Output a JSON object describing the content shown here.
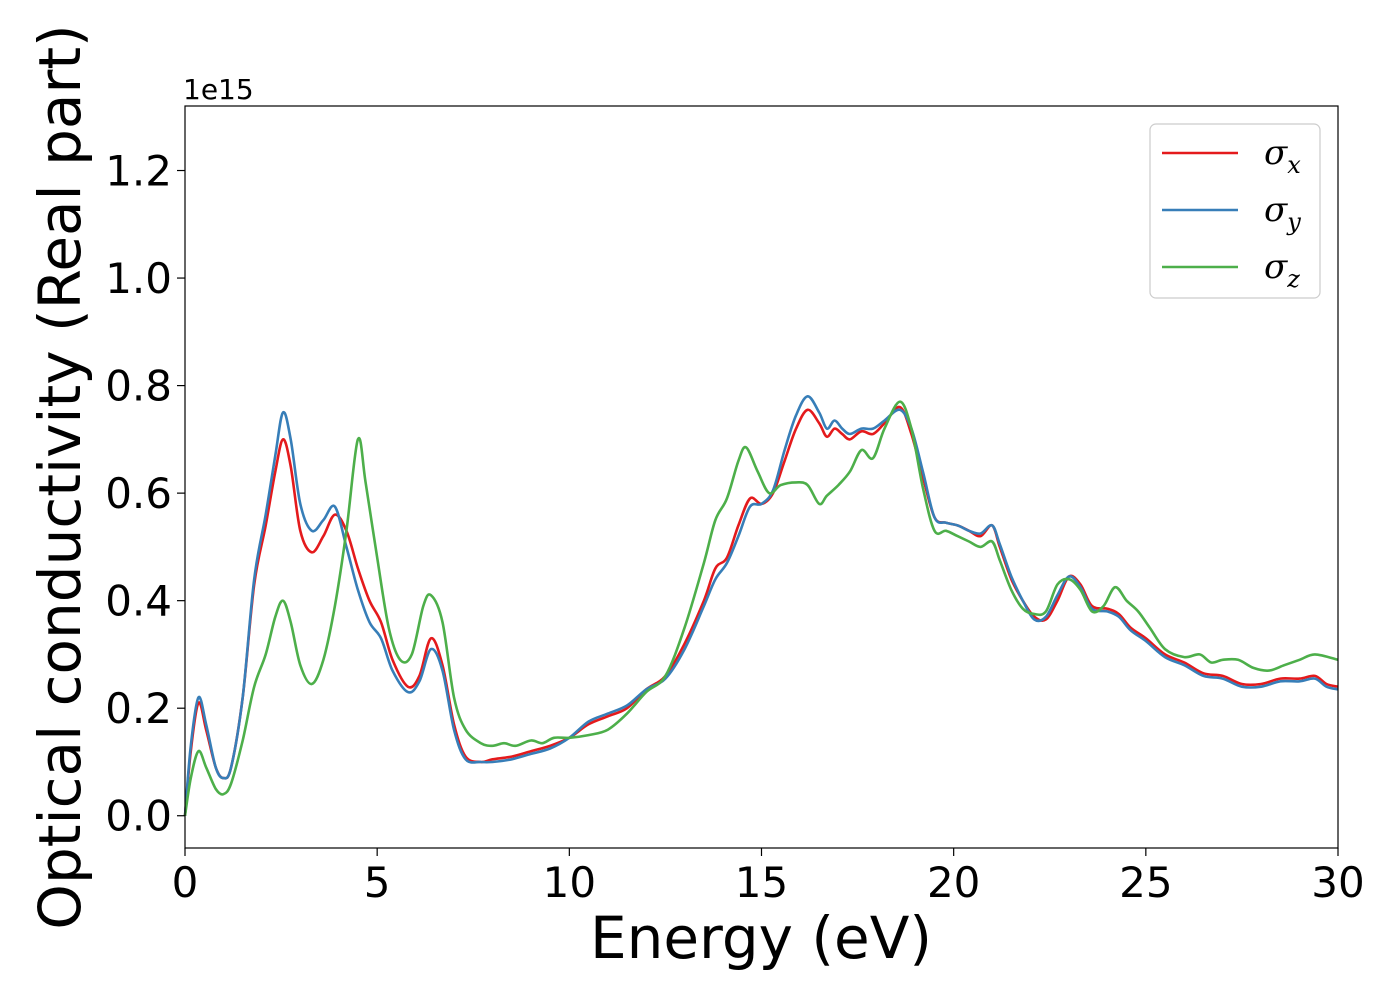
{
  "chart_data": {
    "type": "line",
    "xlabel": "Energy (eV)",
    "ylabel": "Optical conductivity (Real part)",
    "y_offset_text": "1e15",
    "xlim": [
      0,
      30
    ],
    "ylim": [
      -0.06,
      1.32
    ],
    "x_ticks": [
      0,
      5,
      10,
      15,
      20,
      25,
      30
    ],
    "y_ticks": [
      0.0,
      0.2,
      0.4,
      0.6,
      0.8,
      1.0,
      1.2
    ],
    "x_tick_labels": [
      "0",
      "5",
      "10",
      "15",
      "20",
      "25",
      "30"
    ],
    "y_tick_labels": [
      "0.0",
      "0.2",
      "0.4",
      "0.6",
      "0.8",
      "1.0",
      "1.2"
    ],
    "grid": false,
    "legend_position": "top-right",
    "series": [
      {
        "name": "σx",
        "symbol": "σ",
        "sub": "x",
        "color": "#e41a1c",
        "points": [
          [
            0,
            0
          ],
          [
            0.15,
            0.12
          ],
          [
            0.35,
            0.21
          ],
          [
            0.55,
            0.16
          ],
          [
            0.8,
            0.09
          ],
          [
            1.0,
            0.07
          ],
          [
            1.2,
            0.09
          ],
          [
            1.5,
            0.22
          ],
          [
            1.8,
            0.43
          ],
          [
            2.1,
            0.54
          ],
          [
            2.35,
            0.64
          ],
          [
            2.55,
            0.7
          ],
          [
            2.75,
            0.65
          ],
          [
            3.0,
            0.53
          ],
          [
            3.3,
            0.49
          ],
          [
            3.6,
            0.52
          ],
          [
            3.9,
            0.56
          ],
          [
            4.2,
            0.53
          ],
          [
            4.5,
            0.46
          ],
          [
            4.8,
            0.4
          ],
          [
            5.1,
            0.36
          ],
          [
            5.4,
            0.29
          ],
          [
            5.8,
            0.24
          ],
          [
            6.1,
            0.26
          ],
          [
            6.4,
            0.33
          ],
          [
            6.7,
            0.28
          ],
          [
            7.0,
            0.17
          ],
          [
            7.3,
            0.11
          ],
          [
            7.7,
            0.1
          ],
          [
            8.0,
            0.105
          ],
          [
            8.5,
            0.11
          ],
          [
            9.0,
            0.12
          ],
          [
            9.5,
            0.13
          ],
          [
            10.0,
            0.145
          ],
          [
            10.5,
            0.17
          ],
          [
            11.0,
            0.185
          ],
          [
            11.5,
            0.2
          ],
          [
            12.0,
            0.235
          ],
          [
            12.5,
            0.26
          ],
          [
            13.0,
            0.32
          ],
          [
            13.5,
            0.4
          ],
          [
            13.8,
            0.46
          ],
          [
            14.1,
            0.48
          ],
          [
            14.4,
            0.54
          ],
          [
            14.7,
            0.59
          ],
          [
            15.0,
            0.58
          ],
          [
            15.3,
            0.6
          ],
          [
            15.6,
            0.66
          ],
          [
            15.9,
            0.72
          ],
          [
            16.2,
            0.755
          ],
          [
            16.5,
            0.73
          ],
          [
            16.7,
            0.705
          ],
          [
            16.9,
            0.72
          ],
          [
            17.1,
            0.71
          ],
          [
            17.3,
            0.7
          ],
          [
            17.6,
            0.715
          ],
          [
            17.9,
            0.71
          ],
          [
            18.2,
            0.73
          ],
          [
            18.6,
            0.76
          ],
          [
            18.9,
            0.71
          ],
          [
            19.2,
            0.63
          ],
          [
            19.5,
            0.555
          ],
          [
            19.8,
            0.545
          ],
          [
            20.1,
            0.54
          ],
          [
            20.4,
            0.53
          ],
          [
            20.7,
            0.52
          ],
          [
            21.0,
            0.54
          ],
          [
            21.2,
            0.5
          ],
          [
            21.5,
            0.44
          ],
          [
            21.8,
            0.4
          ],
          [
            22.1,
            0.37
          ],
          [
            22.4,
            0.365
          ],
          [
            22.7,
            0.4
          ],
          [
            23.0,
            0.445
          ],
          [
            23.3,
            0.43
          ],
          [
            23.6,
            0.39
          ],
          [
            24.0,
            0.385
          ],
          [
            24.3,
            0.375
          ],
          [
            24.6,
            0.35
          ],
          [
            25.0,
            0.33
          ],
          [
            25.5,
            0.3
          ],
          [
            26.0,
            0.285
          ],
          [
            26.5,
            0.265
          ],
          [
            27.0,
            0.26
          ],
          [
            27.5,
            0.245
          ],
          [
            28.0,
            0.245
          ],
          [
            28.5,
            0.255
          ],
          [
            29.0,
            0.255
          ],
          [
            29.4,
            0.26
          ],
          [
            29.7,
            0.245
          ],
          [
            30.0,
            0.24
          ]
        ]
      },
      {
        "name": "σy",
        "symbol": "σ",
        "sub": "y",
        "color": "#377eb8",
        "points": [
          [
            0,
            0
          ],
          [
            0.15,
            0.13
          ],
          [
            0.35,
            0.22
          ],
          [
            0.55,
            0.17
          ],
          [
            0.8,
            0.09
          ],
          [
            1.0,
            0.07
          ],
          [
            1.2,
            0.09
          ],
          [
            1.5,
            0.22
          ],
          [
            1.8,
            0.44
          ],
          [
            2.1,
            0.56
          ],
          [
            2.35,
            0.67
          ],
          [
            2.55,
            0.75
          ],
          [
            2.75,
            0.7
          ],
          [
            3.0,
            0.58
          ],
          [
            3.3,
            0.53
          ],
          [
            3.6,
            0.55
          ],
          [
            3.9,
            0.575
          ],
          [
            4.2,
            0.5
          ],
          [
            4.5,
            0.42
          ],
          [
            4.8,
            0.36
          ],
          [
            5.1,
            0.33
          ],
          [
            5.4,
            0.27
          ],
          [
            5.8,
            0.23
          ],
          [
            6.1,
            0.25
          ],
          [
            6.4,
            0.31
          ],
          [
            6.7,
            0.27
          ],
          [
            7.0,
            0.16
          ],
          [
            7.3,
            0.105
          ],
          [
            7.7,
            0.1
          ],
          [
            8.0,
            0.1
          ],
          [
            8.5,
            0.105
          ],
          [
            9.0,
            0.115
          ],
          [
            9.5,
            0.125
          ],
          [
            10.0,
            0.145
          ],
          [
            10.5,
            0.175
          ],
          [
            11.0,
            0.19
          ],
          [
            11.5,
            0.205
          ],
          [
            12.0,
            0.235
          ],
          [
            12.5,
            0.255
          ],
          [
            13.0,
            0.31
          ],
          [
            13.5,
            0.39
          ],
          [
            13.8,
            0.44
          ],
          [
            14.1,
            0.47
          ],
          [
            14.4,
            0.52
          ],
          [
            14.7,
            0.575
          ],
          [
            15.0,
            0.58
          ],
          [
            15.3,
            0.605
          ],
          [
            15.6,
            0.68
          ],
          [
            15.9,
            0.745
          ],
          [
            16.2,
            0.78
          ],
          [
            16.5,
            0.75
          ],
          [
            16.7,
            0.72
          ],
          [
            16.9,
            0.735
          ],
          [
            17.1,
            0.72
          ],
          [
            17.3,
            0.71
          ],
          [
            17.6,
            0.72
          ],
          [
            17.9,
            0.72
          ],
          [
            18.2,
            0.735
          ],
          [
            18.6,
            0.755
          ],
          [
            18.9,
            0.72
          ],
          [
            19.2,
            0.64
          ],
          [
            19.5,
            0.555
          ],
          [
            19.8,
            0.545
          ],
          [
            20.1,
            0.54
          ],
          [
            20.4,
            0.53
          ],
          [
            20.7,
            0.525
          ],
          [
            21.0,
            0.54
          ],
          [
            21.2,
            0.505
          ],
          [
            21.5,
            0.445
          ],
          [
            21.8,
            0.4
          ],
          [
            22.1,
            0.365
          ],
          [
            22.4,
            0.37
          ],
          [
            22.7,
            0.41
          ],
          [
            23.0,
            0.445
          ],
          [
            23.3,
            0.425
          ],
          [
            23.6,
            0.385
          ],
          [
            24.0,
            0.38
          ],
          [
            24.3,
            0.37
          ],
          [
            24.6,
            0.345
          ],
          [
            25.0,
            0.325
          ],
          [
            25.5,
            0.295
          ],
          [
            26.0,
            0.28
          ],
          [
            26.5,
            0.26
          ],
          [
            27.0,
            0.255
          ],
          [
            27.5,
            0.24
          ],
          [
            28.0,
            0.24
          ],
          [
            28.5,
            0.25
          ],
          [
            29.0,
            0.25
          ],
          [
            29.4,
            0.255
          ],
          [
            29.7,
            0.24
          ],
          [
            30.0,
            0.235
          ]
        ]
      },
      {
        "name": "σz",
        "symbol": "σ",
        "sub": "z",
        "color": "#4daf4a",
        "points": [
          [
            0,
            0
          ],
          [
            0.15,
            0.07
          ],
          [
            0.35,
            0.12
          ],
          [
            0.55,
            0.09
          ],
          [
            0.8,
            0.05
          ],
          [
            1.0,
            0.04
          ],
          [
            1.2,
            0.06
          ],
          [
            1.5,
            0.14
          ],
          [
            1.8,
            0.24
          ],
          [
            2.1,
            0.3
          ],
          [
            2.35,
            0.37
          ],
          [
            2.55,
            0.4
          ],
          [
            2.75,
            0.36
          ],
          [
            3.0,
            0.28
          ],
          [
            3.3,
            0.245
          ],
          [
            3.6,
            0.29
          ],
          [
            3.9,
            0.39
          ],
          [
            4.2,
            0.53
          ],
          [
            4.5,
            0.7
          ],
          [
            4.7,
            0.62
          ],
          [
            5.0,
            0.48
          ],
          [
            5.3,
            0.35
          ],
          [
            5.6,
            0.29
          ],
          [
            5.9,
            0.3
          ],
          [
            6.2,
            0.39
          ],
          [
            6.4,
            0.41
          ],
          [
            6.7,
            0.36
          ],
          [
            7.0,
            0.22
          ],
          [
            7.3,
            0.16
          ],
          [
            7.7,
            0.135
          ],
          [
            8.0,
            0.13
          ],
          [
            8.3,
            0.135
          ],
          [
            8.6,
            0.13
          ],
          [
            9.0,
            0.14
          ],
          [
            9.3,
            0.135
          ],
          [
            9.6,
            0.145
          ],
          [
            10.0,
            0.145
          ],
          [
            10.5,
            0.15
          ],
          [
            11.0,
            0.16
          ],
          [
            11.5,
            0.19
          ],
          [
            12.0,
            0.23
          ],
          [
            12.5,
            0.26
          ],
          [
            13.0,
            0.35
          ],
          [
            13.5,
            0.47
          ],
          [
            13.8,
            0.55
          ],
          [
            14.1,
            0.59
          ],
          [
            14.4,
            0.66
          ],
          [
            14.6,
            0.685
          ],
          [
            14.9,
            0.64
          ],
          [
            15.2,
            0.6
          ],
          [
            15.5,
            0.615
          ],
          [
            15.9,
            0.62
          ],
          [
            16.2,
            0.615
          ],
          [
            16.5,
            0.58
          ],
          [
            16.7,
            0.595
          ],
          [
            17.0,
            0.615
          ],
          [
            17.3,
            0.64
          ],
          [
            17.6,
            0.68
          ],
          [
            17.9,
            0.665
          ],
          [
            18.2,
            0.72
          ],
          [
            18.6,
            0.77
          ],
          [
            18.9,
            0.72
          ],
          [
            19.2,
            0.61
          ],
          [
            19.5,
            0.53
          ],
          [
            19.8,
            0.53
          ],
          [
            20.1,
            0.52
          ],
          [
            20.4,
            0.51
          ],
          [
            20.7,
            0.5
          ],
          [
            21.0,
            0.51
          ],
          [
            21.2,
            0.475
          ],
          [
            21.5,
            0.42
          ],
          [
            21.8,
            0.385
          ],
          [
            22.1,
            0.375
          ],
          [
            22.4,
            0.38
          ],
          [
            22.7,
            0.43
          ],
          [
            23.0,
            0.44
          ],
          [
            23.3,
            0.42
          ],
          [
            23.6,
            0.38
          ],
          [
            23.9,
            0.39
          ],
          [
            24.2,
            0.425
          ],
          [
            24.5,
            0.4
          ],
          [
            24.8,
            0.38
          ],
          [
            25.1,
            0.35
          ],
          [
            25.5,
            0.31
          ],
          [
            26.0,
            0.295
          ],
          [
            26.4,
            0.3
          ],
          [
            26.7,
            0.285
          ],
          [
            27.0,
            0.29
          ],
          [
            27.4,
            0.29
          ],
          [
            27.8,
            0.275
          ],
          [
            28.2,
            0.27
          ],
          [
            28.6,
            0.28
          ],
          [
            29.0,
            0.29
          ],
          [
            29.4,
            0.3
          ],
          [
            30.0,
            0.29
          ]
        ]
      }
    ]
  }
}
